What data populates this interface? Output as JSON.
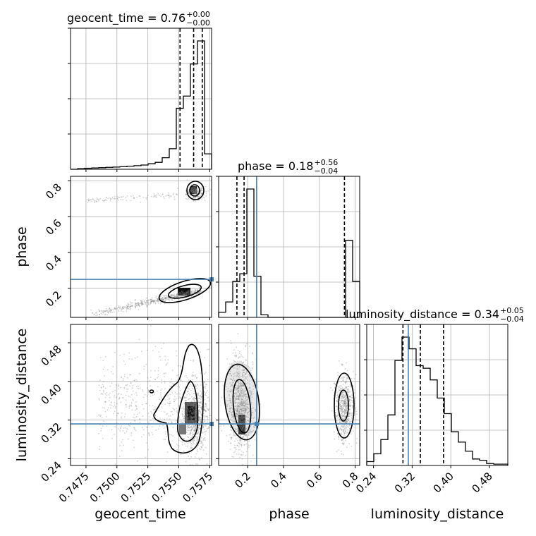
{
  "chart_data": {
    "type": "corner",
    "parameters": [
      "geocent_time",
      "phase",
      "luminosity_distance"
    ],
    "axis_labels": {
      "geocent_time": "geocent_time",
      "phase": "phase",
      "luminosity_distance": "luminosity_distance"
    },
    "ranges": {
      "geocent_time": [
        0.74625,
        0.75765
      ],
      "phase": [
        0.038,
        0.825
      ],
      "luminosity_distance": [
        0.226,
        0.518
      ]
    },
    "ticks": {
      "geocent_time": [
        0.7475,
        0.75,
        0.7525,
        0.755,
        0.7575
      ],
      "phase": [
        0.2,
        0.4,
        0.6,
        0.8
      ],
      "luminosity_distance": [
        0.24,
        0.32,
        0.4,
        0.48
      ]
    },
    "tick_labels": {
      "geocent_time": [
        "0.7475",
        "0.7500",
        "0.7525",
        "0.7550",
        "0.7575"
      ],
      "phase": [
        "0.2",
        "0.4",
        "0.6",
        "0.8"
      ],
      "luminosity_distance": [
        "0.24",
        "0.32",
        "0.40",
        "0.48"
      ]
    },
    "titles": {
      "geocent_time": {
        "name": "geocent_time",
        "median": "0.76",
        "upper": "+0.00",
        "lower": "−0.00"
      },
      "phase": {
        "name": "phase",
        "median": "0.18",
        "upper": "+0.56",
        "lower": "−0.04"
      },
      "luminosity_distance": {
        "name": "luminosity_distance",
        "median": "0.34",
        "upper": "+0.05",
        "lower": "−0.04"
      }
    },
    "quantiles": {
      "geocent_time": [
        0.7551,
        0.7562,
        0.7569
      ],
      "phase": [
        0.14,
        0.18,
        0.74
      ],
      "luminosity_distance": [
        0.301,
        0.337,
        0.385
      ]
    },
    "truth": {
      "phase": 0.25,
      "luminosity_distance": 0.312,
      "color": "#4682b4"
    },
    "histograms": {
      "geocent_time": {
        "edges": [
          0.74625,
          0.75765
        ],
        "counts": [
          0.0,
          0.5,
          0.8,
          1.0,
          1.2,
          1.5,
          1.7,
          2.0,
          2.4,
          2.8,
          3.3,
          4.3,
          5.4,
          9.0,
          16.0,
          47.5,
          57.0,
          82.0,
          100.0,
          12.0
        ]
      },
      "phase": {
        "edges": [
          0.038,
          0.825
        ],
        "counts": [
          4,
          12,
          28,
          34,
          100,
          32,
          2,
          0,
          0,
          0,
          0,
          0,
          0,
          0,
          0,
          0,
          0,
          0,
          60,
          28
        ]
      },
      "luminosity_distance": {
        "edges": [
          0.226,
          0.518
        ],
        "counts": [
          3,
          9,
          20,
          39,
          81,
          99,
          90,
          77,
          75,
          66,
          52,
          40,
          26,
          18,
          11,
          5,
          4,
          1.5,
          1,
          1
        ]
      }
    },
    "scatter_style": {
      "point_color": "#808080",
      "contour_color": "#000000",
      "grid": true
    }
  }
}
